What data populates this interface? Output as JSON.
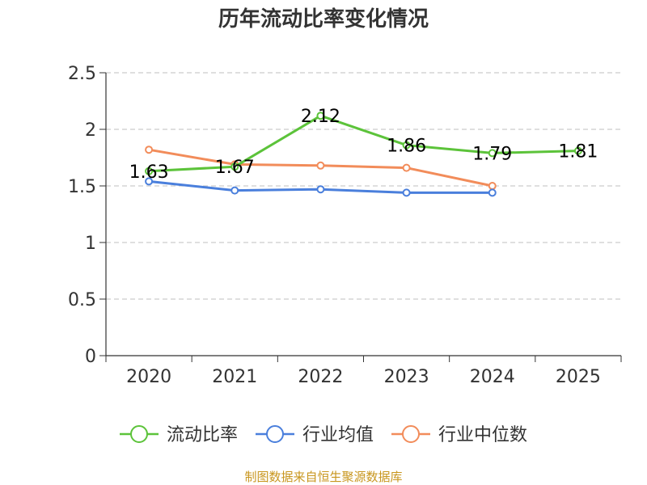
{
  "chart_data": {
    "type": "line",
    "title": "历年流动比率变化情况",
    "categories": [
      "2020",
      "2021",
      "2022",
      "2023",
      "2024",
      "2025"
    ],
    "ylim": [
      0,
      2.5
    ],
    "yticks": [
      "0",
      "0.5",
      "1",
      "1.5",
      "2",
      "2.5"
    ],
    "grid": true,
    "legend_position": "bottom",
    "series": [
      {
        "name": "流动比率",
        "color": "#5cc33a",
        "values": [
          1.63,
          1.67,
          2.12,
          1.86,
          1.79,
          1.81
        ],
        "labels": [
          "1.63",
          "1.67",
          "2.12",
          "1.86",
          "1.79",
          "1.81"
        ]
      },
      {
        "name": "行业均值",
        "color": "#4a7fdc",
        "values": [
          1.54,
          1.46,
          1.47,
          1.44,
          1.44,
          null
        ]
      },
      {
        "name": "行业中位数",
        "color": "#f28c5a",
        "values": [
          1.82,
          1.69,
          1.68,
          1.66,
          1.5,
          null
        ]
      }
    ]
  },
  "source_text": "制图数据来自恒生聚源数据库"
}
